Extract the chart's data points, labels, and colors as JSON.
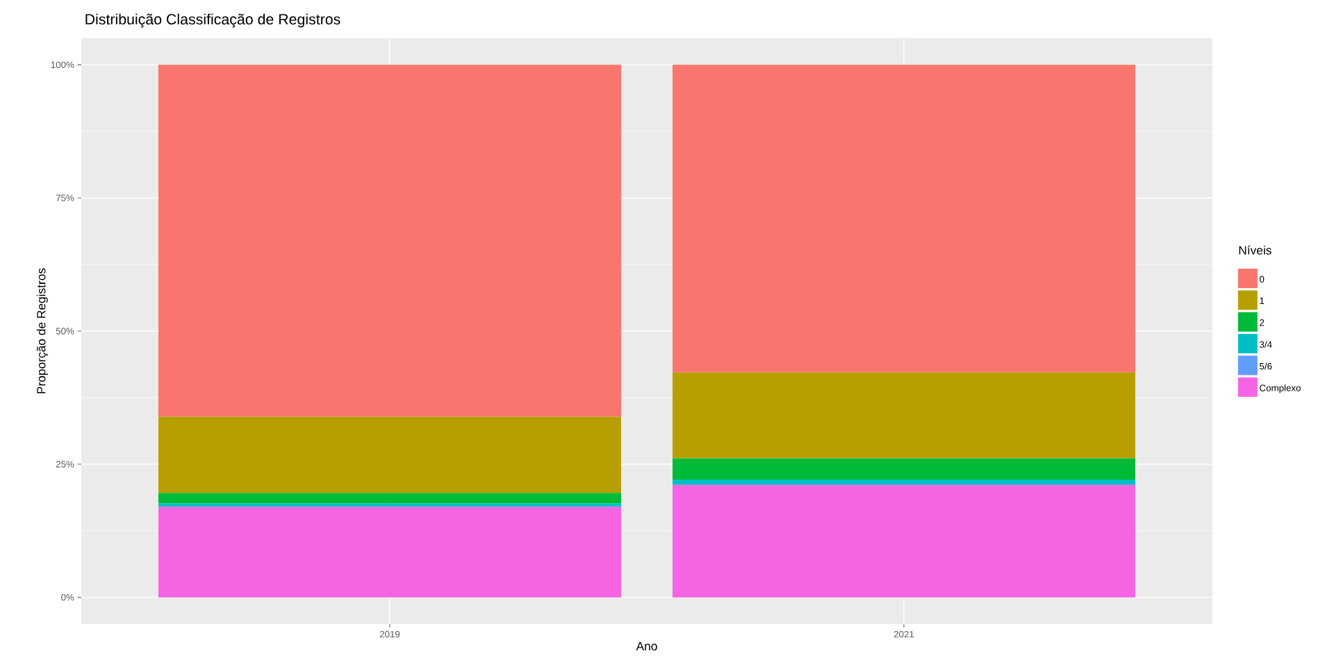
{
  "chart_data": {
    "type": "bar",
    "title": "Distribuição Classificação de Registros",
    "xlabel": "Ano",
    "ylabel": "Proporção de Registros",
    "legend_title": "Níveis",
    "categories": [
      "2019",
      "2021"
    ],
    "stacked": true,
    "series": [
      {
        "name": "Complexo",
        "color": "#f564e3",
        "values": [
          17.0,
          21.1
        ]
      },
      {
        "name": "5/6",
        "color": "#619cff",
        "values": [
          0,
          0
        ]
      },
      {
        "name": "3/4",
        "color": "#00bfc4",
        "values": [
          0.6,
          1.0
        ]
      },
      {
        "name": "2",
        "color": "#00ba38",
        "values": [
          2.0,
          4.0
        ]
      },
      {
        "name": "1",
        "color": "#b79f00",
        "values": [
          14.3,
          16.1
        ]
      },
      {
        "name": "0",
        "color": "#f8766d",
        "values": [
          66.1,
          57.8
        ]
      }
    ],
    "ylim": [
      -5,
      105
    ],
    "yticks": [
      {
        "value": 0,
        "label": "0%"
      },
      {
        "value": 25,
        "label": "25%"
      },
      {
        "value": 50,
        "label": "50%"
      },
      {
        "value": 75,
        "label": "75%"
      },
      {
        "value": 100,
        "label": "100%"
      }
    ],
    "grid": true,
    "legend": "right"
  }
}
